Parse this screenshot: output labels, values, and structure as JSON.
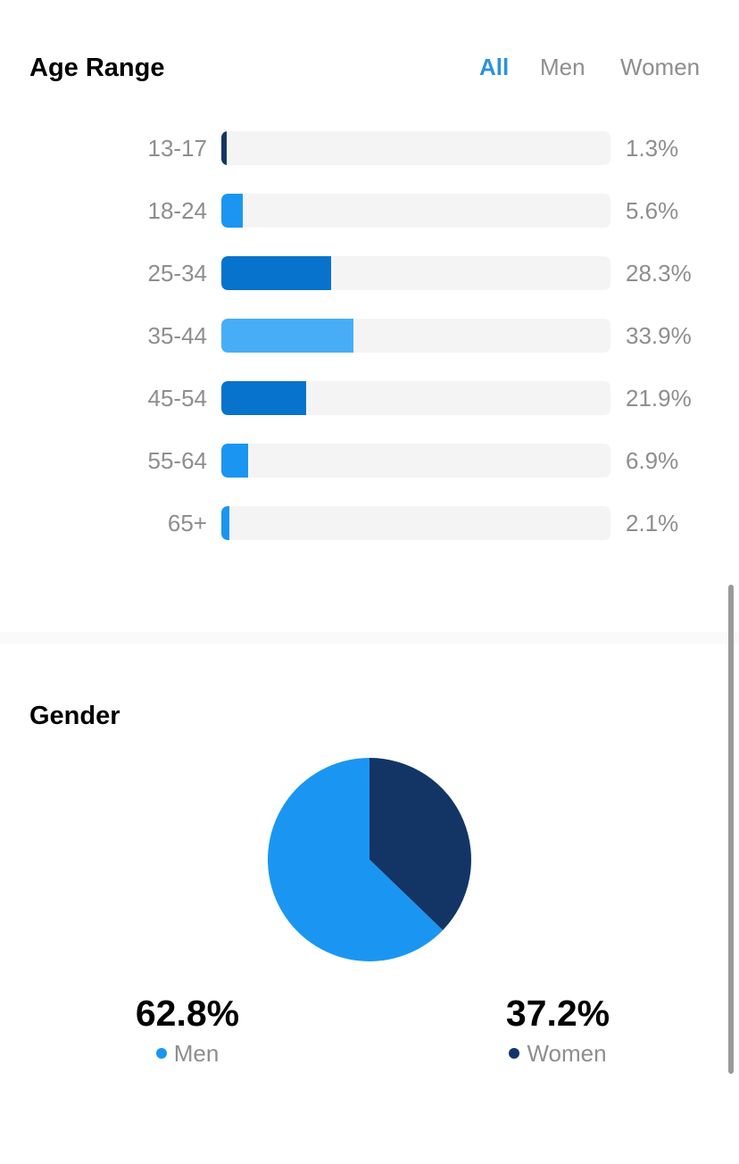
{
  "age_range": {
    "title": "Age Range",
    "tabs": [
      {
        "label": "All",
        "active": true
      },
      {
        "label": "Men",
        "active": false
      },
      {
        "label": "Women",
        "active": false
      }
    ]
  },
  "gender": {
    "title": "Gender",
    "men": {
      "percent_label": "62.8%",
      "name": "Men",
      "color": "#1a96f2"
    },
    "women": {
      "percent_label": "37.2%",
      "name": "Women",
      "color": "#133566"
    }
  },
  "chart_data": [
    {
      "type": "bar",
      "orientation": "horizontal",
      "categories": [
        "13-17",
        "18-24",
        "25-34",
        "35-44",
        "45-54",
        "55-64",
        "65+"
      ],
      "values": [
        1.3,
        5.6,
        28.3,
        33.9,
        21.9,
        6.9,
        2.1
      ],
      "value_labels": [
        "1.3%",
        "5.6%",
        "28.3%",
        "33.9%",
        "21.9%",
        "6.9%",
        "2.1%"
      ],
      "colors": [
        "#133566",
        "#1a96f2",
        "#0873cc",
        "#48adf7",
        "#0873cc",
        "#1a96f2",
        "#1a96f2"
      ],
      "xlim": [
        0,
        100
      ],
      "unit": "%"
    },
    {
      "type": "pie",
      "categories": [
        "Women",
        "Men"
      ],
      "values": [
        37.2,
        62.8
      ],
      "colors": [
        "#133566",
        "#1a96f2"
      ]
    }
  ]
}
